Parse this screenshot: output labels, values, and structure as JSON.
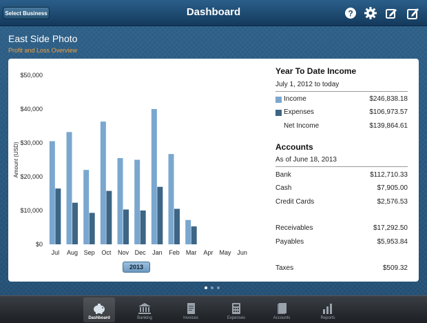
{
  "header": {
    "title": "Dashboard",
    "select_business_label": "Select Business",
    "icons": [
      "help-icon",
      "gear-icon",
      "edit-icon",
      "compose-icon"
    ]
  },
  "company": {
    "name": "East Side Photo",
    "subtitle": "Profit and Loss Overview"
  },
  "colors": {
    "income": "#7aa7cf",
    "expenses": "#3d6585",
    "accent": "#f2a23e"
  },
  "chart_data": {
    "type": "bar",
    "categories": [
      "Jul",
      "Aug",
      "Sep",
      "Oct",
      "Nov",
      "Dec",
      "Jan",
      "Feb",
      "Mar",
      "Apr",
      "May",
      "Jun"
    ],
    "series": [
      {
        "values": [
          30500,
          33200,
          22000,
          36300,
          25500,
          25000,
          40000,
          26700,
          7200,
          0,
          0,
          0
        ]
      },
      {
        "values": [
          16500,
          12300,
          9300,
          15800,
          10300,
          10000,
          17000,
          10500,
          5300,
          0,
          0,
          0
        ]
      }
    ],
    "ylabel": "Amount (USD)",
    "ylim": [
      0,
      50000
    ],
    "yticks": [
      0,
      10000,
      20000,
      30000,
      40000,
      50000
    ],
    "ytick_labels": [
      "$0",
      "$10,000",
      "$20,000",
      "$30,000",
      "$40,000",
      "$50,000"
    ],
    "grid": false,
    "year_label": "2013"
  },
  "ytd": {
    "title": "Year To Date Income",
    "period": "July 1, 2012 to today",
    "rows": [
      {
        "label": "Income",
        "value": "$246,838.18"
      },
      {
        "label": "Expenses",
        "value": "$106,973.57"
      },
      {
        "label": "Net Income",
        "value": "$139,864.61"
      }
    ]
  },
  "accounts": {
    "title": "Accounts",
    "as_of": "As of June 18, 2013",
    "rows": [
      {
        "label": "Bank",
        "value": "$112,710.33"
      },
      {
        "label": "Cash",
        "value": "$7,905.00"
      },
      {
        "label": "Credit Cards",
        "value": "$2,576.53"
      },
      {
        "label": "Receivables",
        "value": "$17,292.50"
      },
      {
        "label": "Payables",
        "value": "$5,953.84"
      },
      {
        "label": "Taxes",
        "value": "$509.32"
      }
    ]
  },
  "tabs": [
    {
      "label": "Dashboard",
      "icon": "piggy-bank-icon",
      "active": true
    },
    {
      "label": "Banking",
      "icon": "bank-icon",
      "active": false
    },
    {
      "label": "Invoices",
      "icon": "invoice-icon",
      "active": false
    },
    {
      "label": "Expenses",
      "icon": "calculator-icon",
      "active": false
    },
    {
      "label": "Accounts",
      "icon": "accounts-icon",
      "active": false
    },
    {
      "label": "Reports",
      "icon": "reports-icon",
      "active": false
    }
  ]
}
